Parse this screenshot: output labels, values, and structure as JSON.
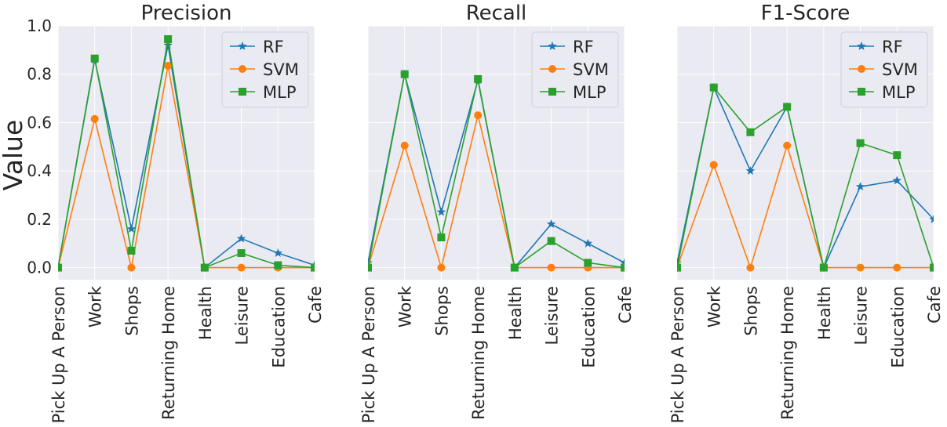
{
  "ylabel": "Value",
  "chart_data": [
    {
      "type": "line",
      "title": "Precision",
      "categories": [
        "Pick Up A Person",
        "Work",
        "Shops",
        "Returning Home",
        "Health",
        "Leisure",
        "Education",
        "Cafe"
      ],
      "ylim": [
        -0.05,
        1.0
      ],
      "yticks": [
        "0.0",
        "0.2",
        "0.4",
        "0.6",
        "0.8",
        "1.0"
      ],
      "ylabel": "Value",
      "grid": true,
      "legend": "top-right",
      "series": [
        {
          "name": "RF",
          "color": "#1f77b4",
          "marker": "star",
          "values": [
            0.0,
            0.86,
            0.16,
            0.92,
            0.0,
            0.12,
            0.06,
            0.01
          ]
        },
        {
          "name": "SVM",
          "color": "#ff7f0e",
          "marker": "circle",
          "values": [
            0.0,
            0.615,
            0.0,
            0.835,
            0.0,
            0.0,
            0.0,
            0.0
          ]
        },
        {
          "name": "MLP",
          "color": "#2ca02c",
          "marker": "square",
          "values": [
            0.0,
            0.865,
            0.07,
            0.945,
            0.0,
            0.06,
            0.01,
            0.0
          ]
        }
      ]
    },
    {
      "type": "line",
      "title": "Recall",
      "categories": [
        "Pick Up A Person",
        "Work",
        "Shops",
        "Returning Home",
        "Health",
        "Leisure",
        "Education",
        "Cafe"
      ],
      "ylim": [
        -0.05,
        1.0
      ],
      "grid": true,
      "legend": "top-right",
      "series": [
        {
          "name": "RF",
          "color": "#1f77b4",
          "marker": "star",
          "values": [
            0.02,
            0.8,
            0.23,
            0.775,
            0.0,
            0.18,
            0.1,
            0.02
          ]
        },
        {
          "name": "SVM",
          "color": "#ff7f0e",
          "marker": "circle",
          "values": [
            0.0,
            0.505,
            0.0,
            0.63,
            0.0,
            0.0,
            0.0,
            0.0
          ]
        },
        {
          "name": "MLP",
          "color": "#2ca02c",
          "marker": "square",
          "values": [
            0.0,
            0.8,
            0.125,
            0.78,
            0.0,
            0.11,
            0.02,
            0.0
          ]
        }
      ]
    },
    {
      "type": "line",
      "title": "F1-Score",
      "categories": [
        "Pick Up A Person",
        "Work",
        "Shops",
        "Returning Home",
        "Health",
        "Leisure",
        "Education",
        "Cafe"
      ],
      "ylim": [
        -0.05,
        1.0
      ],
      "grid": true,
      "legend": "top-right",
      "series": [
        {
          "name": "RF",
          "color": "#1f77b4",
          "marker": "star",
          "values": [
            0.02,
            0.745,
            0.4,
            0.665,
            0.0,
            0.335,
            0.36,
            0.2
          ]
        },
        {
          "name": "SVM",
          "color": "#ff7f0e",
          "marker": "circle",
          "values": [
            0.0,
            0.425,
            0.0,
            0.505,
            0.0,
            0.0,
            0.0,
            0.0
          ]
        },
        {
          "name": "MLP",
          "color": "#2ca02c",
          "marker": "square",
          "values": [
            0.0,
            0.745,
            0.56,
            0.665,
            0.0,
            0.515,
            0.465,
            0.0
          ]
        }
      ]
    }
  ]
}
